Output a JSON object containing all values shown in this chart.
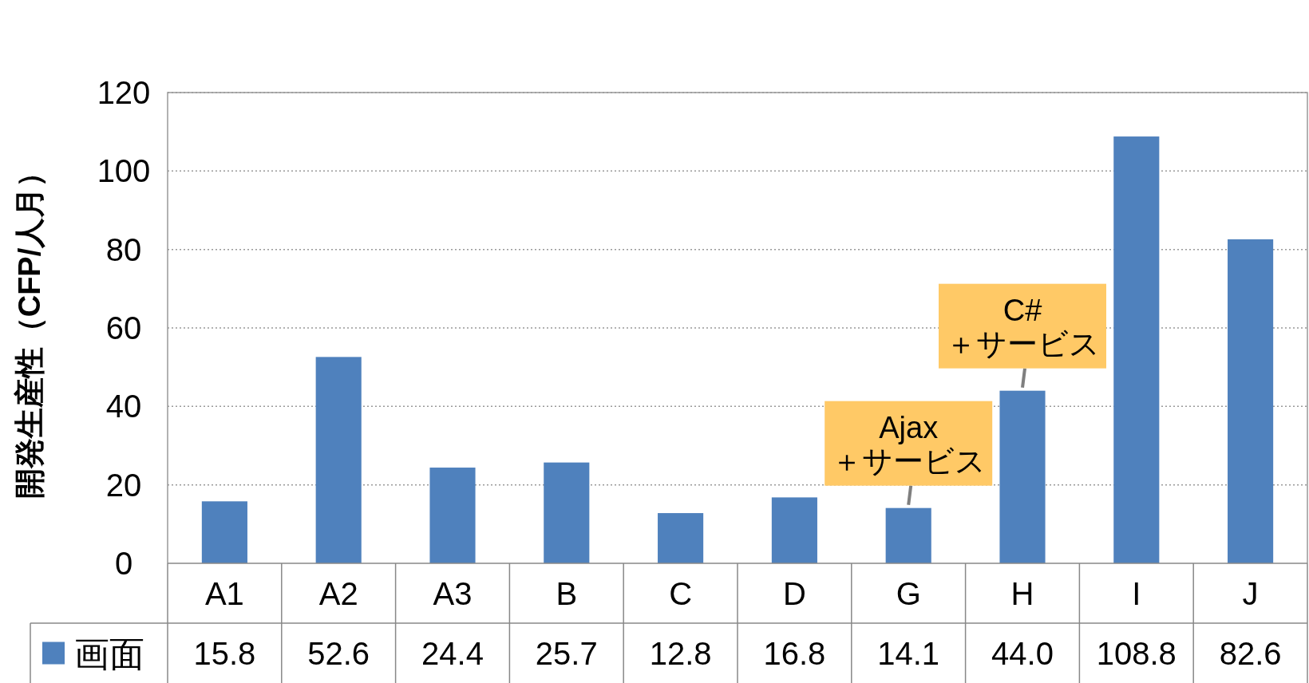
{
  "chart_data": {
    "type": "bar",
    "ylabel": "開発生産性（CFP/人月）",
    "categories": [
      "A1",
      "A2",
      "A3",
      "B",
      "C",
      "D",
      "G",
      "H",
      "I",
      "J"
    ],
    "series": [
      {
        "name": "画面",
        "color": "#4f81bd",
        "values": [
          15.8,
          52.6,
          24.4,
          25.7,
          12.8,
          16.8,
          14.1,
          44.0,
          108.8,
          82.6
        ],
        "value_labels": [
          "15.8",
          "52.6",
          "24.4",
          "25.7",
          "12.8",
          "16.8",
          "14.1",
          "44.0",
          "108.8",
          "82.6"
        ]
      }
    ],
    "ylim": [
      0,
      120
    ],
    "yticks": [
      0,
      20,
      40,
      60,
      80,
      100,
      120
    ],
    "grid": "y",
    "legend": "bottom",
    "annotations": [
      {
        "text": "Ajax\n＋サービス",
        "x": "G",
        "y": 14.1
      },
      {
        "text": "C#\n＋サービス",
        "x": "H",
        "y": 44.0
      }
    ]
  }
}
